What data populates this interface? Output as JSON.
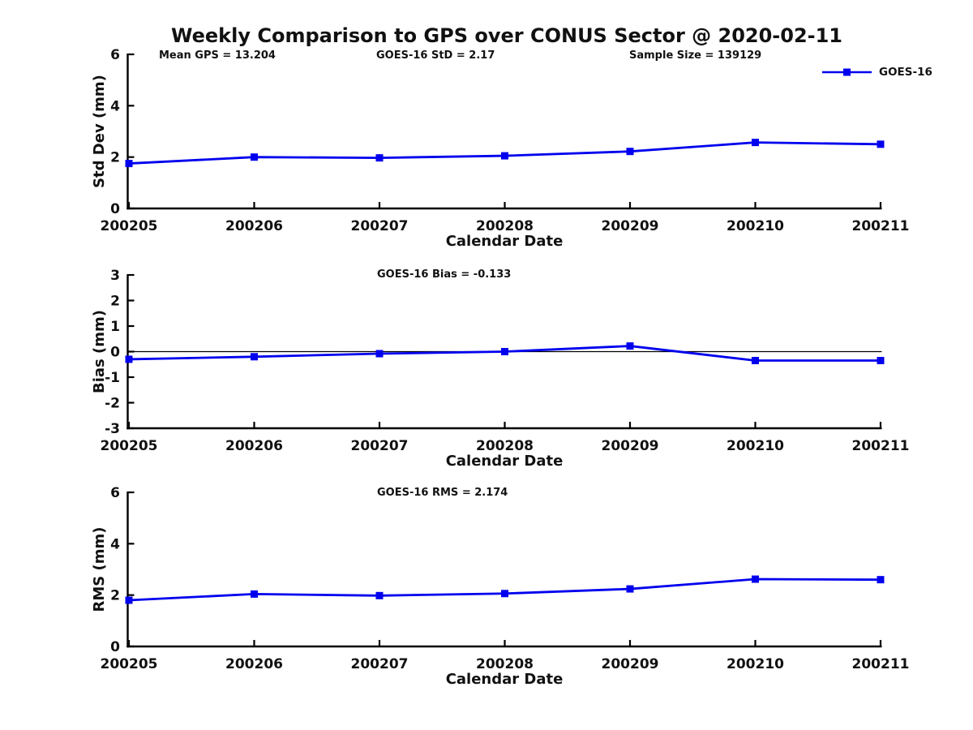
{
  "title": "Weekly Comparison to GPS over CONUS Sector @ 2020-02-11",
  "legend": {
    "label": "GOES-16"
  },
  "colors": {
    "series": "#0000EE",
    "axis": "#000000",
    "text": "#111111",
    "background": "#ffffff"
  },
  "chart_data": [
    {
      "type": "line",
      "name": "std-dev-subplot",
      "annotations": [
        "Mean GPS = 13.204",
        "GOES-16 StD = 2.17",
        "Sample Size = 139129"
      ],
      "categories": [
        "200205",
        "200206",
        "200207",
        "200208",
        "200209",
        "200210",
        "200211"
      ],
      "series": [
        {
          "name": "GOES-16",
          "values": [
            1.75,
            2.0,
            1.97,
            2.05,
            2.22,
            2.57,
            2.5
          ]
        }
      ],
      "xlabel": "Calendar Date",
      "ylabel": "Std Dev (mm)",
      "ylim": [
        0,
        6
      ],
      "yticks": [
        0,
        2,
        4,
        6
      ],
      "grid": false,
      "legend_position": "top-right",
      "marker": "square"
    },
    {
      "type": "line",
      "name": "bias-subplot",
      "annotations": [
        "GOES-16 Bias  = -0.133"
      ],
      "categories": [
        "200205",
        "200206",
        "200207",
        "200208",
        "200209",
        "200210",
        "200211"
      ],
      "series": [
        {
          "name": "GOES-16",
          "values": [
            -0.3,
            -0.2,
            -0.08,
            0.0,
            0.22,
            -0.35,
            -0.35
          ]
        }
      ],
      "xlabel": "Calendar Date",
      "ylabel": "Bias (mm)",
      "ylim": [
        -3,
        3
      ],
      "yticks": [
        3,
        2,
        1,
        0,
        -1,
        -2,
        -3
      ],
      "hline": 0,
      "grid": false,
      "marker": "square"
    },
    {
      "type": "line",
      "name": "rms-subplot",
      "annotations": [
        "GOES-16 RMS = 2.174"
      ],
      "categories": [
        "200205",
        "200206",
        "200207",
        "200208",
        "200209",
        "200210",
        "200211"
      ],
      "series": [
        {
          "name": "GOES-16",
          "values": [
            1.8,
            2.04,
            1.98,
            2.06,
            2.24,
            2.62,
            2.6
          ]
        }
      ],
      "xlabel": "Calendar Date",
      "ylabel": "RMS (mm)",
      "ylim": [
        0,
        6
      ],
      "yticks": [
        0,
        2,
        4,
        6
      ],
      "grid": false,
      "marker": "square"
    }
  ]
}
